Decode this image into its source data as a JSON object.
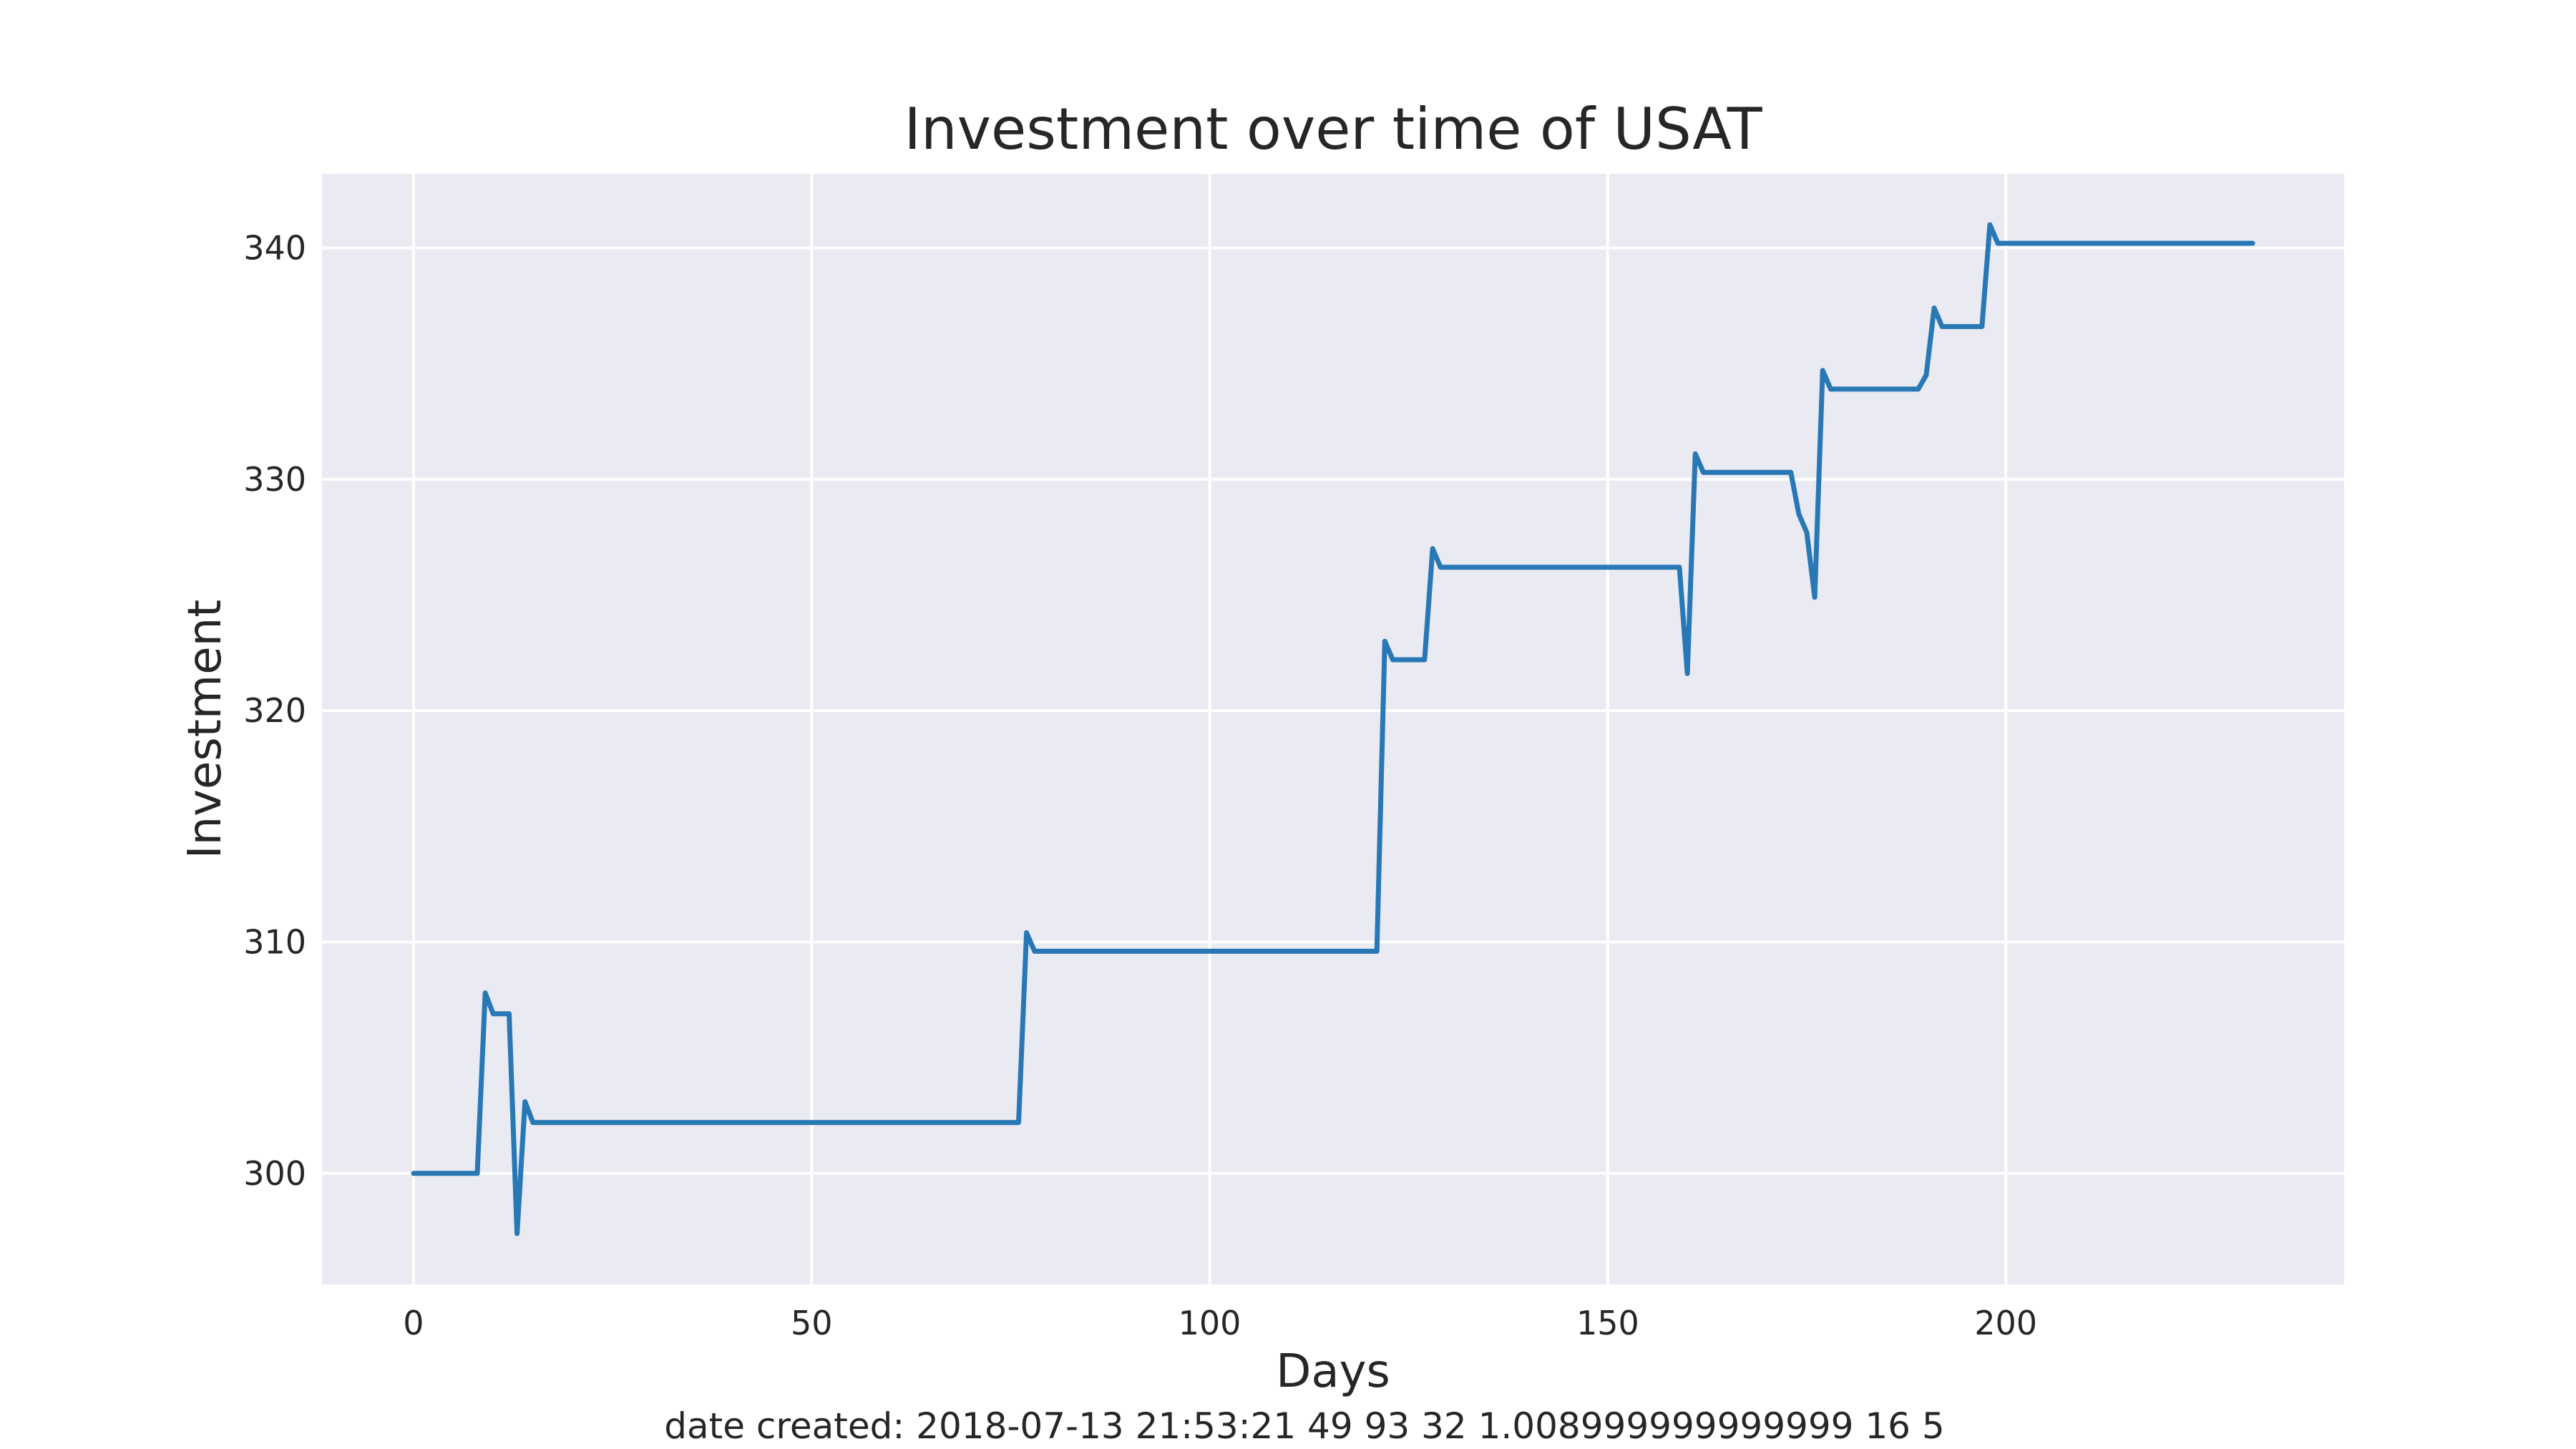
{
  "chart_data": {
    "type": "line",
    "title": "Investment over time of USAT",
    "xlabel": "Days",
    "ylabel": "Investment",
    "caption": "date created: 2018-07-13 21:53:21 49 93 32 1.008999999999999 16 5",
    "xlim": [
      -11.5,
      242.5
    ],
    "ylim": [
      295.2,
      343.2
    ],
    "xticks": [
      0,
      50,
      100,
      150,
      200
    ],
    "yticks": [
      300,
      310,
      320,
      330,
      340
    ],
    "grid": true,
    "background": "#eaeaf2",
    "series": [
      {
        "name": "Investment",
        "color": "#2878b5",
        "points": [
          [
            0,
            300.0
          ],
          [
            8,
            300.0
          ],
          [
            9,
            307.8
          ],
          [
            10,
            306.9
          ],
          [
            12,
            306.9
          ],
          [
            13,
            297.4
          ],
          [
            14,
            303.1
          ],
          [
            15,
            302.2
          ],
          [
            76,
            302.2
          ],
          [
            77,
            310.4
          ],
          [
            78,
            309.6
          ],
          [
            121,
            309.6
          ],
          [
            122,
            323.0
          ],
          [
            123,
            322.2
          ],
          [
            127,
            322.2
          ],
          [
            128,
            327.0
          ],
          [
            129,
            326.2
          ],
          [
            159,
            326.2
          ],
          [
            160,
            321.6
          ],
          [
            161,
            331.1
          ],
          [
            162,
            330.3
          ],
          [
            173,
            330.3
          ],
          [
            174,
            328.5
          ],
          [
            175,
            327.7
          ],
          [
            176,
            324.9
          ],
          [
            177,
            334.7
          ],
          [
            178,
            333.9
          ],
          [
            189,
            333.9
          ],
          [
            190,
            334.5
          ],
          [
            191,
            337.4
          ],
          [
            192,
            336.6
          ],
          [
            197,
            336.6
          ],
          [
            198,
            341.0
          ],
          [
            199,
            340.2
          ],
          [
            231,
            340.2
          ]
        ]
      }
    ]
  }
}
